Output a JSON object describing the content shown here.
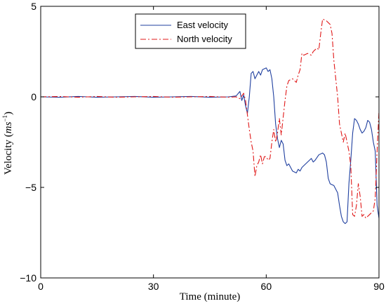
{
  "chart_data": {
    "type": "line",
    "xlabel": "Time (minute)",
    "ylabel_main": "Velocity (",
    "ylabel_unit": "ms",
    "ylabel_exp": "−1",
    "ylabel_close": ")",
    "xlim": [
      0,
      90
    ],
    "ylim": [
      -10,
      5
    ],
    "xticks": [
      0,
      30,
      60,
      90
    ],
    "yticks": [
      -10,
      -5,
      0,
      5
    ],
    "xtick_labels": [
      "0",
      "30",
      "60",
      "90"
    ],
    "ytick_labels": [
      "−10",
      "−5",
      "0",
      "5"
    ],
    "legend_position": "top-center",
    "grid": false,
    "series": [
      {
        "name": "East velocity",
        "color": "#1f3f9f",
        "style": "solid",
        "points": [
          [
            0,
            0
          ],
          [
            5,
            -0.02
          ],
          [
            10,
            0.02
          ],
          [
            15,
            -0.02
          ],
          [
            20,
            0
          ],
          [
            25,
            0.02
          ],
          [
            30,
            -0.02
          ],
          [
            35,
            0
          ],
          [
            40,
            0.02
          ],
          [
            45,
            -0.02
          ],
          [
            50,
            0
          ],
          [
            52,
            0.05
          ],
          [
            53,
            0.3
          ],
          [
            53.5,
            -0.2
          ],
          [
            54,
            0.1
          ],
          [
            54.5,
            -0.5
          ],
          [
            55,
            -0.9
          ],
          [
            55.5,
            0
          ],
          [
            56,
            1.3
          ],
          [
            56.5,
            1.4
          ],
          [
            57,
            1.0
          ],
          [
            57.5,
            1.2
          ],
          [
            58,
            1.4
          ],
          [
            58.5,
            1.2
          ],
          [
            59,
            1.5
          ],
          [
            60,
            1.6
          ],
          [
            60.5,
            1.4
          ],
          [
            61,
            1.5
          ],
          [
            61.5,
            1.0
          ],
          [
            62,
            0
          ],
          [
            62.5,
            -1.5
          ],
          [
            63,
            -2.3
          ],
          [
            63.5,
            -2.8
          ],
          [
            64,
            -2.4
          ],
          [
            64.5,
            -2.6
          ],
          [
            65,
            -3.5
          ],
          [
            65.5,
            -3.8
          ],
          [
            66,
            -3.7
          ],
          [
            66.5,
            -3.9
          ],
          [
            67,
            -4.1
          ],
          [
            68,
            -4.2
          ],
          [
            68.5,
            -4.0
          ],
          [
            69,
            -4.1
          ],
          [
            69.5,
            -3.9
          ],
          [
            70,
            -3.8
          ],
          [
            71,
            -3.6
          ],
          [
            72,
            -3.4
          ],
          [
            72.5,
            -3.6
          ],
          [
            73,
            -3.5
          ],
          [
            74,
            -3.2
          ],
          [
            75,
            -3.1
          ],
          [
            75.5,
            -3.2
          ],
          [
            76,
            -3.6
          ],
          [
            76.5,
            -4.5
          ],
          [
            77,
            -4.8
          ],
          [
            78,
            -4.9
          ],
          [
            78.5,
            -5.1
          ],
          [
            79,
            -5.3
          ],
          [
            79.5,
            -6.0
          ],
          [
            80,
            -6.6
          ],
          [
            80.5,
            -6.9
          ],
          [
            81,
            -7.0
          ],
          [
            81.5,
            -6.9
          ],
          [
            82,
            -4.8
          ],
          [
            82.5,
            -3.5
          ],
          [
            83,
            -2.0
          ],
          [
            83.5,
            -1.2
          ],
          [
            84,
            -1.3
          ],
          [
            84.5,
            -1.5
          ],
          [
            85,
            -1.8
          ],
          [
            85.5,
            -2.0
          ],
          [
            86,
            -1.9
          ],
          [
            86.5,
            -1.7
          ],
          [
            87,
            -1.3
          ],
          [
            87.5,
            -1.4
          ],
          [
            88,
            -1.8
          ],
          [
            88.5,
            -2.5
          ],
          [
            89,
            -3.0
          ],
          [
            89.5,
            -6.0
          ],
          [
            90,
            -6.7
          ]
        ]
      },
      {
        "name": "North velocity",
        "color": "#e01818",
        "style": "dashdot",
        "points": [
          [
            0,
            0
          ],
          [
            5,
            0.02
          ],
          [
            10,
            -0.02
          ],
          [
            15,
            0.02
          ],
          [
            20,
            -0.02
          ],
          [
            25,
            0
          ],
          [
            30,
            0.02
          ],
          [
            35,
            -0.02
          ],
          [
            40,
            0
          ],
          [
            45,
            0.02
          ],
          [
            50,
            -0.02
          ],
          [
            52,
            0
          ],
          [
            53,
            -0.1
          ],
          [
            54,
            0.2
          ],
          [
            54.5,
            -0.2
          ],
          [
            55,
            -1.0
          ],
          [
            55.5,
            -1.8
          ],
          [
            56,
            -2.5
          ],
          [
            56.5,
            -3.0
          ],
          [
            57,
            -4.4
          ],
          [
            57.5,
            -3.8
          ],
          [
            58,
            -3.6
          ],
          [
            58.5,
            -3.2
          ],
          [
            59,
            -3.7
          ],
          [
            59.5,
            -3.3
          ],
          [
            60,
            -3.3
          ],
          [
            60.5,
            -3.5
          ],
          [
            61,
            -3.4
          ],
          [
            61.5,
            -2.5
          ],
          [
            62,
            -1.8
          ],
          [
            62.5,
            -2.5
          ],
          [
            63,
            -2.0
          ],
          [
            63.5,
            -1.2
          ],
          [
            64,
            -2.1
          ],
          [
            65,
            -0.2
          ],
          [
            65.5,
            0.6
          ],
          [
            66,
            0.9
          ],
          [
            67,
            1.0
          ],
          [
            68,
            0.8
          ],
          [
            68.5,
            1.2
          ],
          [
            69,
            1.5
          ],
          [
            69.5,
            2.4
          ],
          [
            70,
            2.3
          ],
          [
            71,
            2.4
          ],
          [
            72,
            2.3
          ],
          [
            72.5,
            2.5
          ],
          [
            73,
            2.6
          ],
          [
            73.5,
            2.7
          ],
          [
            74,
            2.6
          ],
          [
            74.5,
            3.5
          ],
          [
            75,
            4.3
          ],
          [
            76,
            4.2
          ],
          [
            77,
            4.0
          ],
          [
            77.5,
            3.5
          ],
          [
            78,
            2.0
          ],
          [
            78.5,
            1.0
          ],
          [
            79,
            0
          ],
          [
            79.5,
            -1.5
          ],
          [
            80,
            -2.0
          ],
          [
            80.5,
            -2.5
          ],
          [
            81,
            -2.0
          ],
          [
            81.5,
            -2.5
          ],
          [
            82,
            -3.0
          ],
          [
            82.5,
            -3.8
          ],
          [
            83,
            -6.5
          ],
          [
            83.5,
            -6.6
          ],
          [
            84,
            -6.0
          ],
          [
            84.5,
            -4.8
          ],
          [
            85,
            -5.5
          ],
          [
            85.5,
            -6.6
          ],
          [
            86,
            -6.5
          ],
          [
            86.5,
            -6.7
          ],
          [
            87,
            -6.6
          ],
          [
            87.5,
            -6.5
          ],
          [
            88,
            -6.4
          ],
          [
            88.5,
            -6.3
          ],
          [
            89,
            -5.6
          ],
          [
            89.5,
            -3.0
          ],
          [
            90,
            -0.8
          ]
        ]
      }
    ]
  }
}
